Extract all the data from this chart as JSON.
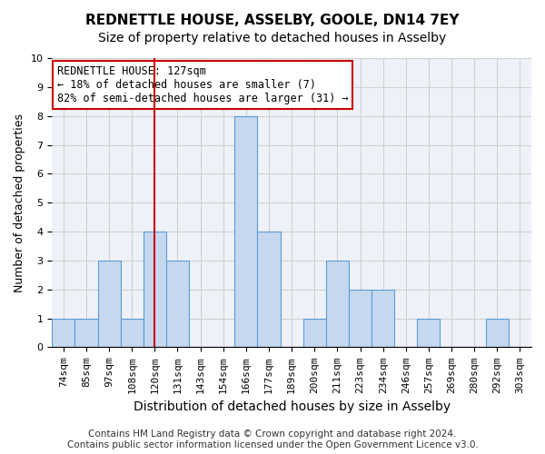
{
  "title": "REDNETTLE HOUSE, ASSELBY, GOOLE, DN14 7EY",
  "subtitle": "Size of property relative to detached houses in Asselby",
  "xlabel": "Distribution of detached houses by size in Asselby",
  "ylabel": "Number of detached properties",
  "categories": [
    "74sqm",
    "85sqm",
    "97sqm",
    "108sqm",
    "120sqm",
    "131sqm",
    "143sqm",
    "154sqm",
    "166sqm",
    "177sqm",
    "189sqm",
    "200sqm",
    "211sqm",
    "223sqm",
    "234sqm",
    "246sqm",
    "257sqm",
    "269sqm",
    "280sqm",
    "292sqm",
    "303sqm"
  ],
  "values": [
    1,
    1,
    3,
    1,
    4,
    3,
    0,
    0,
    8,
    4,
    0,
    1,
    3,
    2,
    2,
    0,
    1,
    0,
    0,
    1,
    0
  ],
  "bar_color": "#c5d8f0",
  "bar_edge_color": "#5b9bd5",
  "vline_x_index": 4,
  "vline_color": "#cc0000",
  "annotation_text": "REDNETTLE HOUSE: 127sqm\n← 18% of detached houses are smaller (7)\n82% of semi-detached houses are larger (31) →",
  "annotation_box_color": "#ffffff",
  "annotation_box_edge_color": "#cc0000",
  "ylim": [
    0,
    10
  ],
  "yticks": [
    0,
    1,
    2,
    3,
    4,
    5,
    6,
    7,
    8,
    9,
    10
  ],
  "grid_color": "#d0d0d0",
  "bg_color": "#eef2f8",
  "footer_line1": "Contains HM Land Registry data © Crown copyright and database right 2024.",
  "footer_line2": "Contains public sector information licensed under the Open Government Licence v3.0.",
  "title_fontsize": 11,
  "subtitle_fontsize": 10,
  "xlabel_fontsize": 10,
  "ylabel_fontsize": 9,
  "tick_fontsize": 8,
  "annotation_fontsize": 8.5,
  "footer_fontsize": 7.5
}
